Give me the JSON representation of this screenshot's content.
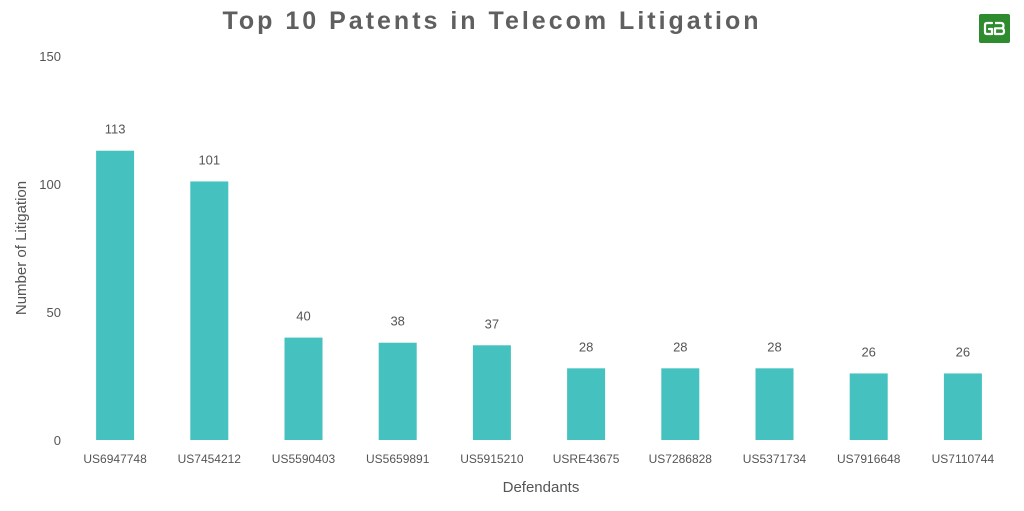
{
  "chart_data": {
    "type": "bar",
    "title": "Top 10 Patents in Telecom Litigation",
    "xlabel": "Defendants",
    "ylabel": "Number of Litigation",
    "categories": [
      "US6947748",
      "US7454212",
      "US5590403",
      "US5659891",
      "US5915210",
      "USRE43675",
      "US7286828",
      "US5371734",
      "US7916648",
      "US7110744"
    ],
    "values": [
      113,
      101,
      40,
      38,
      37,
      28,
      28,
      28,
      26,
      26
    ],
    "ylim": [
      0,
      150
    ],
    "yticks": [
      0,
      50,
      100,
      150
    ],
    "grid": false,
    "legend": "none",
    "bar_color": "#45c2bf"
  },
  "logo": {
    "name": "gb-logo",
    "color": "#2e8b2e"
  }
}
